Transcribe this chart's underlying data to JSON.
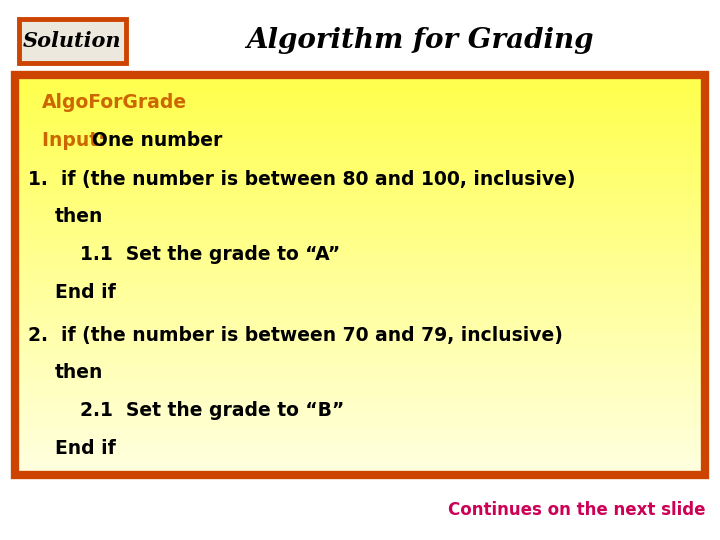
{
  "title": "Algorithm for Grading",
  "solution_label": "Solution",
  "bg_color": "#ffffff",
  "outer_border_color": "#cc4400",
  "solution_box_color": "#cc4400",
  "solution_box_bg": "#ede8de",
  "solution_text_color": "#000000",
  "title_color": "#000000",
  "algo_name_color": "#cc6600",
  "input_label_color": "#cc6600",
  "input_text_color": "#000000",
  "body_text_color": "#000000",
  "continues_color": "#cc0055",
  "continues_text": "Continues on the next slide",
  "font_size": 13.5,
  "title_font_size": 20,
  "sol_font_size": 15
}
